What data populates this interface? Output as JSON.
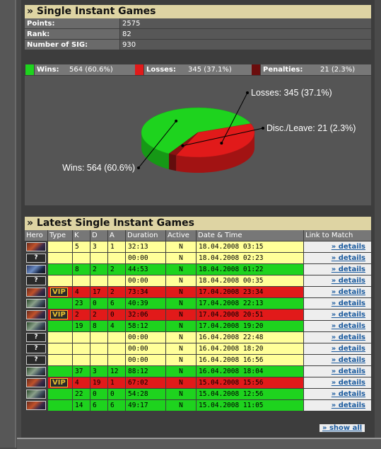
{
  "single": {
    "title": "» Single Instant Games",
    "stats": [
      {
        "label": "Points:",
        "value": "2575"
      },
      {
        "label": "Rank:",
        "value": "82"
      },
      {
        "label": "Number of SIG:",
        "value": "930"
      }
    ]
  },
  "legend": {
    "wins_label": "Wins:",
    "wins_value": "564 (60.6%)",
    "losses_label": "Losses:",
    "losses_value": "345 (37.1%)",
    "penalties_label": "Penalties:",
    "penalties_value": "21 (2.3%)",
    "colors": {
      "wins": "#1ed31e",
      "losses": "#e11a1a",
      "penalties": "#6b0d0d"
    }
  },
  "chart_data": {
    "type": "pie",
    "slices": [
      {
        "label": "Wins: 564 (60.6%)",
        "value": 564,
        "color": "#1ed31e"
      },
      {
        "label": "Losses: 345 (37.1%)",
        "value": 345,
        "color": "#e11a1a"
      },
      {
        "label": "Disc./Leave: 21 (2.3%)",
        "value": 21,
        "color": "#8a1212"
      }
    ]
  },
  "latest": {
    "title": "» Latest Single Instant Games",
    "headers": [
      "Hero",
      "Type",
      "K",
      "D",
      "A",
      "Duration",
      "Active",
      "Date & Time",
      "Link to Match"
    ],
    "details_label": "» details",
    "show_all_label": "» show all",
    "rows": [
      {
        "hero": "img",
        "vip": "",
        "k": "5",
        "d": "3",
        "a": "1",
        "dur": "32:13",
        "act": "N",
        "date": "18.04.2008 03:15",
        "color": "yellow"
      },
      {
        "hero": "?",
        "vip": "",
        "k": "",
        "d": "",
        "a": "",
        "dur": "00:00",
        "act": "N",
        "date": "18.04.2008 02:23",
        "color": "yellow"
      },
      {
        "hero": "img-b",
        "vip": "",
        "k": "8",
        "d": "2",
        "a": "2",
        "dur": "44:53",
        "act": "N",
        "date": "18.04.2008 01:22",
        "color": "green"
      },
      {
        "hero": "?",
        "vip": "",
        "k": "",
        "d": "",
        "a": "",
        "dur": "00:00",
        "act": "N",
        "date": "18.04.2008 00:35",
        "color": "yellow"
      },
      {
        "hero": "img",
        "vip": "VIP",
        "k": "4",
        "d": "17",
        "a": "2",
        "dur": "73:34",
        "act": "N",
        "date": "17.04.2008 23:34",
        "color": "red"
      },
      {
        "hero": "img-g",
        "vip": "",
        "k": "23",
        "d": "0",
        "a": "6",
        "dur": "40:39",
        "act": "N",
        "date": "17.04.2008 22:13",
        "color": "green"
      },
      {
        "hero": "img",
        "vip": "VIP",
        "k": "2",
        "d": "2",
        "a": "0",
        "dur": "32:06",
        "act": "N",
        "date": "17.04.2008 20:51",
        "color": "red"
      },
      {
        "hero": "img-g",
        "vip": "",
        "k": "19",
        "d": "8",
        "a": "4",
        "dur": "58:12",
        "act": "N",
        "date": "17.04.2008 19:20",
        "color": "green"
      },
      {
        "hero": "?",
        "vip": "",
        "k": "",
        "d": "",
        "a": "",
        "dur": "00:00",
        "act": "N",
        "date": "16.04.2008 22:48",
        "color": "yellow"
      },
      {
        "hero": "?",
        "vip": "",
        "k": "",
        "d": "",
        "a": "",
        "dur": "00:00",
        "act": "N",
        "date": "16.04.2008 18:20",
        "color": "yellow"
      },
      {
        "hero": "?",
        "vip": "",
        "k": "",
        "d": "",
        "a": "",
        "dur": "00:00",
        "act": "N",
        "date": "16.04.2008 16:56",
        "color": "yellow"
      },
      {
        "hero": "img-g",
        "vip": "",
        "k": "37",
        "d": "3",
        "a": "12",
        "dur": "88:12",
        "act": "N",
        "date": "16.04.2008 18:04",
        "color": "green"
      },
      {
        "hero": "img",
        "vip": "VIP",
        "k": "4",
        "d": "19",
        "a": "1",
        "dur": "67:02",
        "act": "N",
        "date": "15.04.2008 15:56",
        "color": "red"
      },
      {
        "hero": "img-g",
        "vip": "",
        "k": "22",
        "d": "0",
        "a": "0",
        "dur": "54:28",
        "act": "N",
        "date": "15.04.2008 12:56",
        "color": "green"
      },
      {
        "hero": "img",
        "vip": "",
        "k": "14",
        "d": "6",
        "a": "6",
        "dur": "49:17",
        "act": "N",
        "date": "15.04.2008 11:05",
        "color": "green"
      }
    ]
  }
}
